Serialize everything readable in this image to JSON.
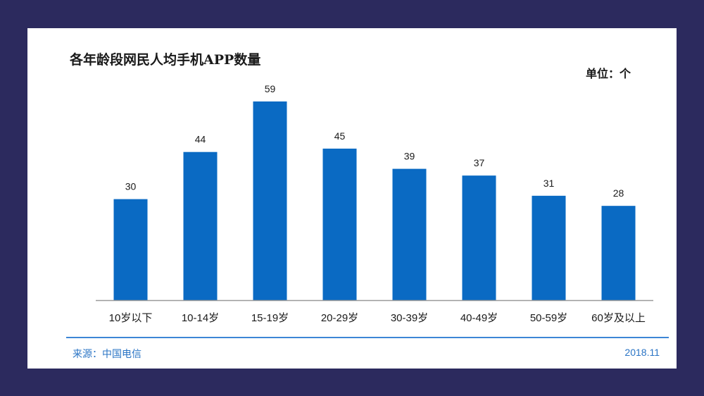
{
  "chart_data": {
    "type": "bar",
    "title": "各年龄段网民人均手机APP数量",
    "unit_label": "单位：个",
    "categories": [
      "10岁以下",
      "10-14岁",
      "15-19岁",
      "20-29岁",
      "30-39岁",
      "40-49岁",
      "50-59岁",
      "60岁及以上"
    ],
    "values": [
      30,
      44,
      59,
      45,
      39,
      37,
      31,
      28
    ],
    "data_labels": [
      "30",
      "44",
      "59",
      "45",
      "39",
      "37",
      "31",
      "28"
    ],
    "ylim": [
      0,
      59
    ],
    "bar_color": "#0a6ac3",
    "axis_color": "#999999",
    "grid": false,
    "legend": "none"
  },
  "footer": {
    "source": "来源：中国电信",
    "date": "2018.11",
    "accent_color": "#2a74c5"
  }
}
